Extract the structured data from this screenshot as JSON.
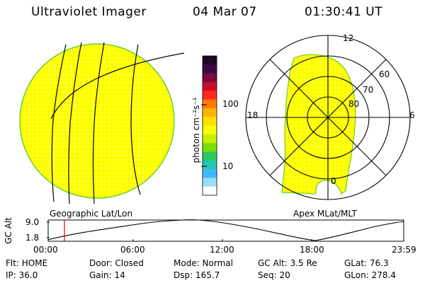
{
  "header": {
    "title": "Ultraviolet Imager",
    "date": "04 Mar 07",
    "time": "01:30:41 UT"
  },
  "colorbar": {
    "unit_label": "photon cm⁻²s⁻¹",
    "ticks": [
      "100",
      "10"
    ],
    "colors": [
      "#1a0a24",
      "#3b0a45",
      "#7a0a40",
      "#c8102e",
      "#ff2a1a",
      "#ff7a00",
      "#ffb400",
      "#ffe000",
      "#f4ff00",
      "#c8f000",
      "#7ddc00",
      "#2cc860",
      "#20c8b0",
      "#40b8ff",
      "#a0dcff",
      "#ffffff"
    ]
  },
  "left_panel": {
    "caption": "Geographic Lat/Lon"
  },
  "right_panel": {
    "caption": "Apex MLat/MLT",
    "mlt_labels": {
      "top": "12",
      "left": "18",
      "right": "6",
      "bottom": "0"
    },
    "lat_labels": [
      "60",
      "70",
      "80"
    ]
  },
  "altitude_plot": {
    "ylabel": "GC Alt",
    "yticks": [
      "9.0",
      "1.8"
    ],
    "xticks": [
      "00:00",
      "06:00",
      "12:00",
      "18:00",
      "23:59"
    ],
    "cursor_time": "01:30"
  },
  "status": {
    "row1": {
      "flt": "Flt: HOME",
      "door": "Door: Closed",
      "mode": "Mode: Normal",
      "gcalt": "GC Alt: 3.5 Re",
      "glat": "GLat: 76.3"
    },
    "row2": {
      "ip": "IP: 36.0",
      "gain": "Gain: 14",
      "dsp": "Dsp: 165.7",
      "seq": "Seq: 20",
      "glon": "GLon: 278.4"
    }
  }
}
